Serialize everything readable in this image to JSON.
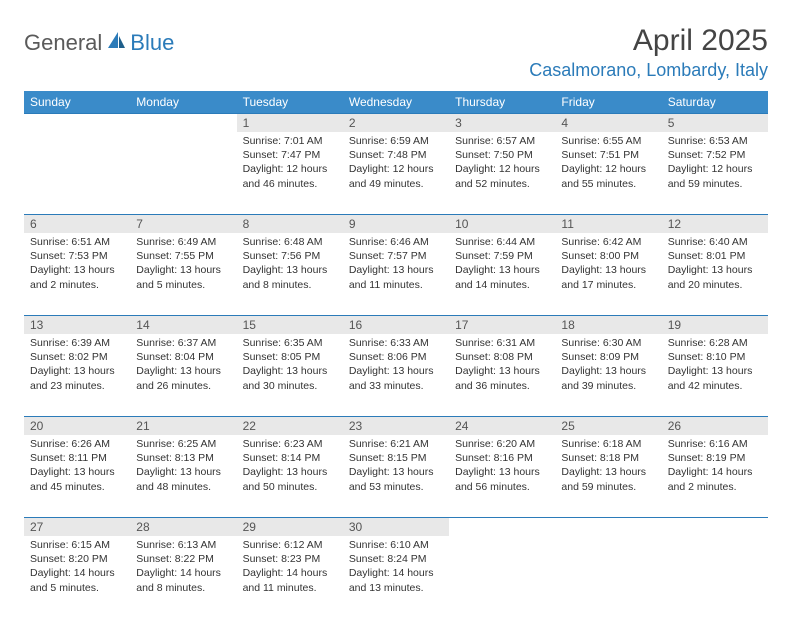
{
  "brand": {
    "general": "General",
    "blue": "Blue"
  },
  "title": "April 2025",
  "location": "Casalmorano, Lombardy, Italy",
  "colors": {
    "header_bg": "#3a8bc9",
    "accent": "#2b7bb9",
    "daynum_bg": "#e8e8e8",
    "text": "#333333"
  },
  "weekdays": [
    "Sunday",
    "Monday",
    "Tuesday",
    "Wednesday",
    "Thursday",
    "Friday",
    "Saturday"
  ],
  "weeks": [
    [
      null,
      null,
      {
        "n": "1",
        "sr": "7:01 AM",
        "ss": "7:47 PM",
        "dl": "12 hours and 46 minutes."
      },
      {
        "n": "2",
        "sr": "6:59 AM",
        "ss": "7:48 PM",
        "dl": "12 hours and 49 minutes."
      },
      {
        "n": "3",
        "sr": "6:57 AM",
        "ss": "7:50 PM",
        "dl": "12 hours and 52 minutes."
      },
      {
        "n": "4",
        "sr": "6:55 AM",
        "ss": "7:51 PM",
        "dl": "12 hours and 55 minutes."
      },
      {
        "n": "5",
        "sr": "6:53 AM",
        "ss": "7:52 PM",
        "dl": "12 hours and 59 minutes."
      }
    ],
    [
      {
        "n": "6",
        "sr": "6:51 AM",
        "ss": "7:53 PM",
        "dl": "13 hours and 2 minutes."
      },
      {
        "n": "7",
        "sr": "6:49 AM",
        "ss": "7:55 PM",
        "dl": "13 hours and 5 minutes."
      },
      {
        "n": "8",
        "sr": "6:48 AM",
        "ss": "7:56 PM",
        "dl": "13 hours and 8 minutes."
      },
      {
        "n": "9",
        "sr": "6:46 AM",
        "ss": "7:57 PM",
        "dl": "13 hours and 11 minutes."
      },
      {
        "n": "10",
        "sr": "6:44 AM",
        "ss": "7:59 PM",
        "dl": "13 hours and 14 minutes."
      },
      {
        "n": "11",
        "sr": "6:42 AM",
        "ss": "8:00 PM",
        "dl": "13 hours and 17 minutes."
      },
      {
        "n": "12",
        "sr": "6:40 AM",
        "ss": "8:01 PM",
        "dl": "13 hours and 20 minutes."
      }
    ],
    [
      {
        "n": "13",
        "sr": "6:39 AM",
        "ss": "8:02 PM",
        "dl": "13 hours and 23 minutes."
      },
      {
        "n": "14",
        "sr": "6:37 AM",
        "ss": "8:04 PM",
        "dl": "13 hours and 26 minutes."
      },
      {
        "n": "15",
        "sr": "6:35 AM",
        "ss": "8:05 PM",
        "dl": "13 hours and 30 minutes."
      },
      {
        "n": "16",
        "sr": "6:33 AM",
        "ss": "8:06 PM",
        "dl": "13 hours and 33 minutes."
      },
      {
        "n": "17",
        "sr": "6:31 AM",
        "ss": "8:08 PM",
        "dl": "13 hours and 36 minutes."
      },
      {
        "n": "18",
        "sr": "6:30 AM",
        "ss": "8:09 PM",
        "dl": "13 hours and 39 minutes."
      },
      {
        "n": "19",
        "sr": "6:28 AM",
        "ss": "8:10 PM",
        "dl": "13 hours and 42 minutes."
      }
    ],
    [
      {
        "n": "20",
        "sr": "6:26 AM",
        "ss": "8:11 PM",
        "dl": "13 hours and 45 minutes."
      },
      {
        "n": "21",
        "sr": "6:25 AM",
        "ss": "8:13 PM",
        "dl": "13 hours and 48 minutes."
      },
      {
        "n": "22",
        "sr": "6:23 AM",
        "ss": "8:14 PM",
        "dl": "13 hours and 50 minutes."
      },
      {
        "n": "23",
        "sr": "6:21 AM",
        "ss": "8:15 PM",
        "dl": "13 hours and 53 minutes."
      },
      {
        "n": "24",
        "sr": "6:20 AM",
        "ss": "8:16 PM",
        "dl": "13 hours and 56 minutes."
      },
      {
        "n": "25",
        "sr": "6:18 AM",
        "ss": "8:18 PM",
        "dl": "13 hours and 59 minutes."
      },
      {
        "n": "26",
        "sr": "6:16 AM",
        "ss": "8:19 PM",
        "dl": "14 hours and 2 minutes."
      }
    ],
    [
      {
        "n": "27",
        "sr": "6:15 AM",
        "ss": "8:20 PM",
        "dl": "14 hours and 5 minutes."
      },
      {
        "n": "28",
        "sr": "6:13 AM",
        "ss": "8:22 PM",
        "dl": "14 hours and 8 minutes."
      },
      {
        "n": "29",
        "sr": "6:12 AM",
        "ss": "8:23 PM",
        "dl": "14 hours and 11 minutes."
      },
      {
        "n": "30",
        "sr": "6:10 AM",
        "ss": "8:24 PM",
        "dl": "14 hours and 13 minutes."
      },
      null,
      null,
      null
    ]
  ],
  "labels": {
    "sunrise": "Sunrise:",
    "sunset": "Sunset:",
    "daylight": "Daylight:"
  }
}
